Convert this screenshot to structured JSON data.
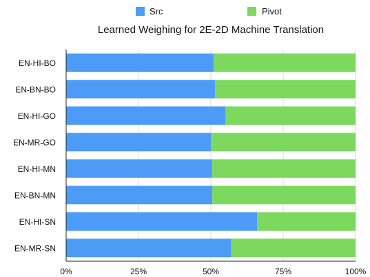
{
  "legend": {
    "items": [
      {
        "label": "Src",
        "color": "#4c9cf7"
      },
      {
        "label": "Pivot",
        "color": "#7dd85e"
      }
    ]
  },
  "chart_data": {
    "type": "bar",
    "orientation": "horizontal",
    "stacked": true,
    "title": "Learned Weighing for 2E-2D Machine Translation",
    "categories": [
      "EN-HI-BO",
      "EN-BN-BO",
      "EN-HI-GO",
      "EN-MR-GO",
      "EN-HI-MN",
      "EN-BN-MN",
      "EN-HI-SN",
      "EN-MR-SN"
    ],
    "series": [
      {
        "name": "Src",
        "color": "#4c9cf7",
        "values": [
          51,
          51.5,
          55,
          50,
          50.5,
          50.5,
          66,
          57
        ]
      },
      {
        "name": "Pivot",
        "color": "#7dd85e",
        "values": [
          49,
          48.5,
          45,
          50,
          49.5,
          49.5,
          34,
          43
        ]
      }
    ],
    "x_tick_labels": [
      "0%",
      "25%",
      "50%",
      "75%",
      "100%"
    ],
    "xlim": [
      0,
      100
    ],
    "legend_position": "top",
    "grid": true
  }
}
